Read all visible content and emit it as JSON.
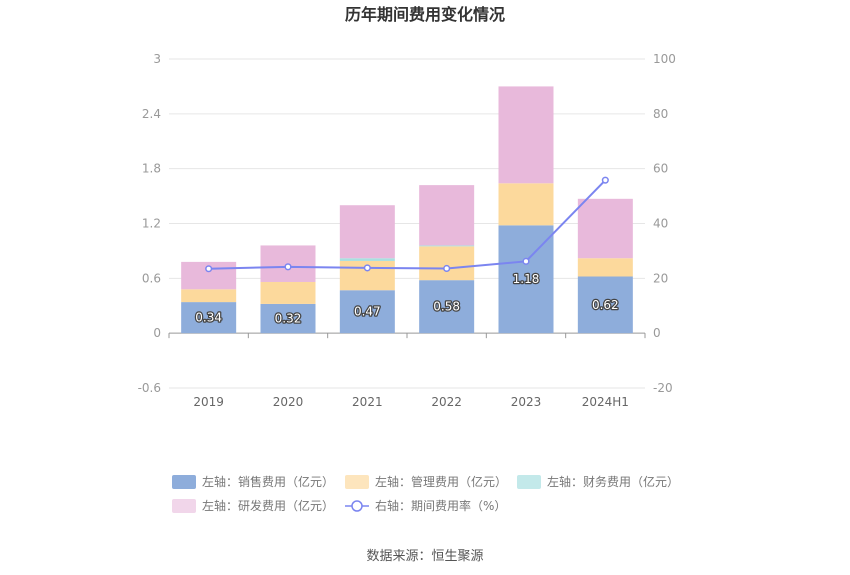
{
  "chart_data": {
    "type": "bar",
    "title": "历年期间费用变化情况",
    "categories": [
      "2019",
      "2020",
      "2021",
      "2022",
      "2023",
      "2024H1"
    ],
    "left_axis": {
      "min": -0.6,
      "max": 3,
      "ticks": [
        "-0.6",
        "0",
        "0.6",
        "1.2",
        "1.8",
        "2.4",
        "3"
      ]
    },
    "right_axis": {
      "min": -20,
      "max": 100,
      "ticks": [
        "-20",
        "0",
        "20",
        "40",
        "60",
        "80",
        "100"
      ]
    },
    "series": [
      {
        "name": "左轴：销售费用（亿元）",
        "axis": "left",
        "kind": "bar",
        "color": "#8eaddb",
        "values": [
          0.34,
          0.32,
          0.47,
          0.58,
          1.18,
          0.62
        ],
        "labels": [
          "0.34",
          "0.32",
          "0.47",
          "0.58",
          "1.18",
          "0.62"
        ]
      },
      {
        "name": "左轴：管理费用（亿元）",
        "axis": "left",
        "kind": "bar",
        "color": "#fcd99c",
        "values": [
          0.14,
          0.24,
          0.32,
          0.37,
          0.46,
          0.2
        ]
      },
      {
        "name": "左轴：财务费用（亿元）",
        "axis": "left",
        "kind": "bar",
        "color": "#a9dfe0",
        "values": [
          0.0,
          0.0,
          0.03,
          0.01,
          0.0,
          0.0
        ]
      },
      {
        "name": "左轴：研发费用（亿元）",
        "axis": "left",
        "kind": "bar",
        "color": "#e8b9db",
        "values": [
          0.3,
          0.4,
          0.58,
          0.66,
          1.06,
          0.65
        ]
      },
      {
        "name": "右轴：期间费用率（%）",
        "axis": "right",
        "kind": "line",
        "color": "#7b85f0",
        "values": [
          23.5,
          24.2,
          23.8,
          23.6,
          26.2,
          55.8
        ]
      }
    ],
    "legend": [
      {
        "label": "左轴：销售费用（亿元）",
        "swatch": "rect",
        "color": "#8eaddb"
      },
      {
        "label": "左轴：管理费用（亿元）",
        "swatch": "rect",
        "color": "#fde5bd"
      },
      {
        "label": "左轴：财务费用（亿元）",
        "swatch": "rect",
        "color": "#c3e9ea"
      },
      {
        "label": "左轴：研发费用（亿元）",
        "swatch": "rect",
        "color": "#f1d6ea"
      },
      {
        "label": "右轴：期间费用率（%）",
        "swatch": "line",
        "color": "#7b85f0"
      }
    ],
    "source": "数据来源：恒生聚源"
  }
}
